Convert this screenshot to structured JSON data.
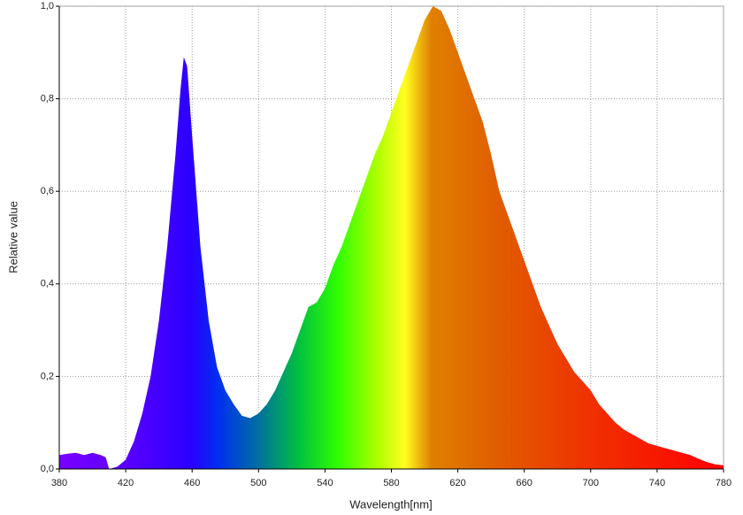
{
  "chart_data": {
    "type": "area",
    "x_label": "Wavelength[nm]",
    "y_label": "Relative value",
    "x": [
      380,
      385,
      390,
      395,
      400,
      405,
      408,
      410,
      415,
      420,
      425,
      430,
      435,
      440,
      445,
      450,
      453,
      455,
      457,
      460,
      465,
      470,
      475,
      480,
      485,
      490,
      495,
      500,
      505,
      510,
      515,
      520,
      525,
      530,
      535,
      540,
      545,
      550,
      555,
      560,
      565,
      570,
      575,
      580,
      585,
      590,
      595,
      600,
      605,
      610,
      615,
      620,
      625,
      630,
      635,
      640,
      645,
      650,
      655,
      660,
      665,
      670,
      675,
      680,
      685,
      690,
      695,
      700,
      705,
      710,
      715,
      720,
      725,
      730,
      735,
      740,
      745,
      750,
      755,
      760,
      765,
      770,
      775,
      780
    ],
    "values": [
      0.03,
      0.033,
      0.035,
      0.03,
      0.035,
      0.03,
      0.025,
      0,
      0.005,
      0.02,
      0.06,
      0.12,
      0.2,
      0.32,
      0.48,
      0.68,
      0.82,
      0.89,
      0.87,
      0.72,
      0.48,
      0.32,
      0.22,
      0.17,
      0.14,
      0.115,
      0.11,
      0.12,
      0.14,
      0.17,
      0.21,
      0.25,
      0.3,
      0.35,
      0.36,
      0.39,
      0.44,
      0.48,
      0.53,
      0.58,
      0.63,
      0.68,
      0.72,
      0.77,
      0.82,
      0.87,
      0.92,
      0.97,
      1.0,
      0.99,
      0.95,
      0.9,
      0.85,
      0.8,
      0.75,
      0.68,
      0.6,
      0.55,
      0.5,
      0.45,
      0.4,
      0.35,
      0.31,
      0.27,
      0.24,
      0.21,
      0.19,
      0.17,
      0.14,
      0.12,
      0.1,
      0.085,
      0.075,
      0.065,
      0.055,
      0.05,
      0.045,
      0.04,
      0.035,
      0.03,
      0.022,
      0.015,
      0.01,
      0.008
    ],
    "xlim": [
      380,
      780
    ],
    "xticks": [
      380,
      420,
      460,
      500,
      540,
      580,
      620,
      660,
      700,
      740,
      780
    ],
    "ylim": [
      0,
      1.0
    ],
    "yticks": [
      {
        "value": 0,
        "label": "0,0"
      },
      {
        "value": 0.2,
        "label": "0,2"
      },
      {
        "value": 0.4,
        "label": "0,4"
      },
      {
        "value": 0.6,
        "label": "0,6"
      },
      {
        "value": 0.8,
        "label": "0,8"
      },
      {
        "value": 1.0,
        "label": "1,0"
      }
    ],
    "grid": true
  }
}
